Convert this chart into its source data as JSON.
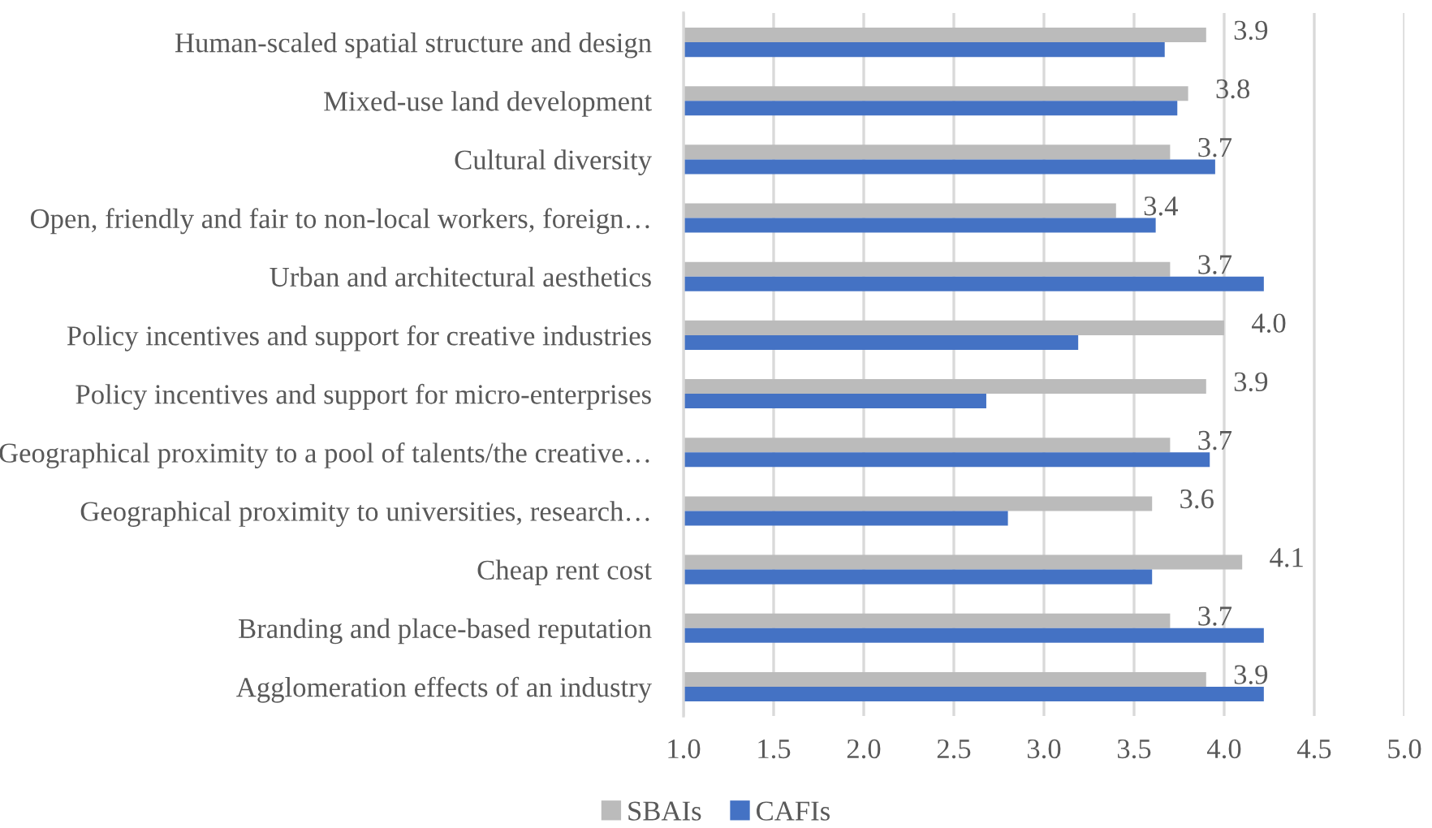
{
  "chart_data": {
    "type": "bar",
    "orientation": "horizontal",
    "categories": [
      "Human-scaled spatial structure and design",
      "Mixed-use land development",
      "Cultural diversity",
      "Open, friendly and fair to non-local workers, foreign…",
      "Urban and architectural aesthetics",
      "Policy incentives and support for creative industries",
      "Policy incentives and support for micro-enterprises",
      "Geographical proximity to a pool of talents/the creative…",
      "Geographical proximity to universities, research…",
      "Cheap rent cost",
      "Branding and place-based reputation",
      "Agglomeration effects of an industry"
    ],
    "series": [
      {
        "name": "SBAIs",
        "color": "#bbbbbb",
        "values": [
          3.9,
          3.8,
          3.7,
          3.4,
          3.7,
          4.0,
          3.9,
          3.7,
          3.6,
          4.1,
          3.7,
          3.9
        ],
        "value_labels": [
          "3.9",
          "3.8",
          "3.7",
          "3.4",
          "3.7",
          "4.0",
          "3.9",
          "3.7",
          "3.6",
          "4.1",
          "3.7",
          "3.9"
        ]
      },
      {
        "name": "CAFIs",
        "color": "#4472c4",
        "values": [
          3.67,
          3.74,
          3.95,
          3.62,
          4.22,
          3.19,
          2.68,
          3.92,
          2.8,
          3.6,
          4.22,
          4.22
        ]
      }
    ],
    "xlim": [
      1.0,
      5.0
    ],
    "xticks": [
      {
        "value": 1.0,
        "label": "1.0"
      },
      {
        "value": 1.5,
        "label": "1.5"
      },
      {
        "value": 2.0,
        "label": "2.0"
      },
      {
        "value": 2.5,
        "label": "2.5"
      },
      {
        "value": 3.0,
        "label": "3.0"
      },
      {
        "value": 3.5,
        "label": "3.5"
      },
      {
        "value": 4.0,
        "label": "4.0"
      },
      {
        "value": 4.5,
        "label": "4.5"
      },
      {
        "value": 5.0,
        "label": "5.0"
      }
    ],
    "grid": "x",
    "legend": "bottom"
  }
}
